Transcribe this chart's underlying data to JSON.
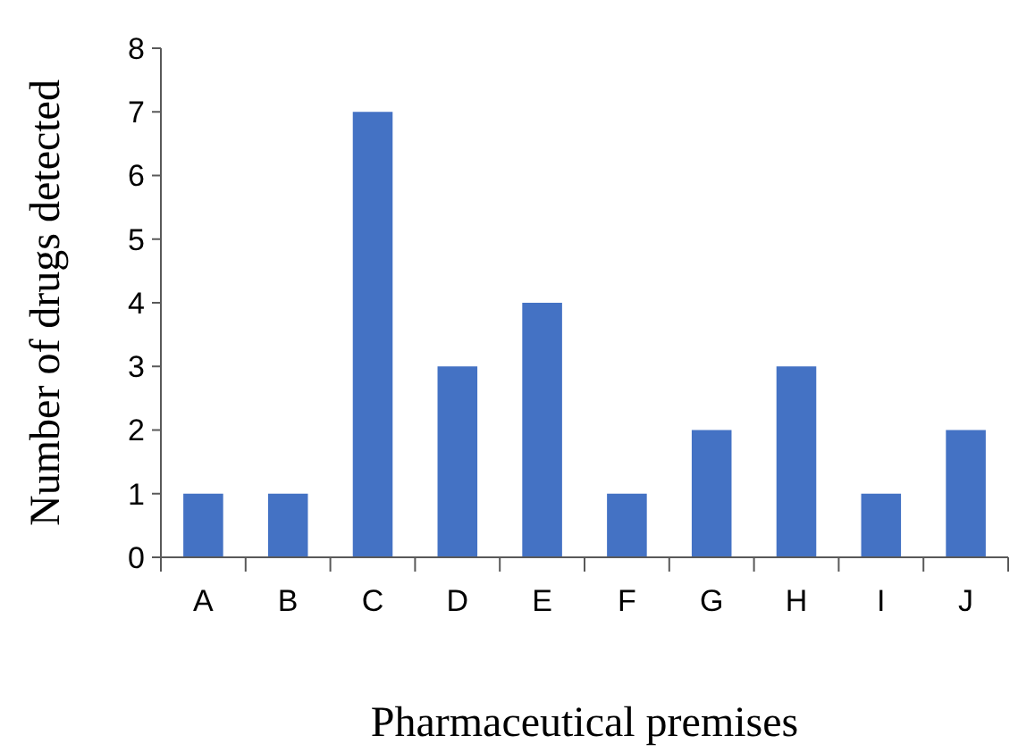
{
  "chart_data": {
    "type": "bar",
    "xlabel": "Pharmaceutical premises",
    "ylabel": "Number of drugs detected",
    "categories": [
      "A",
      "B",
      "C",
      "D",
      "E",
      "F",
      "G",
      "H",
      "I",
      "J"
    ],
    "values": [
      1,
      1,
      7,
      3,
      4,
      1,
      2,
      3,
      1,
      2
    ],
    "color": "#4472c4",
    "ylim": [
      0,
      8
    ],
    "yticks": [
      0,
      1,
      2,
      3,
      4,
      5,
      6,
      7,
      8
    ],
    "grid": false
  }
}
